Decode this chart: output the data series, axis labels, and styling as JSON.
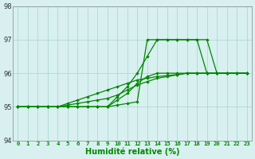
{
  "xlabel": "Humidité relative (%)",
  "background_color": "#d8f0f0",
  "grid_color": "#b0d8d8",
  "line_color": "#008800",
  "xlim": [
    -0.5,
    23.5
  ],
  "ylim": [
    94,
    98
  ],
  "yticks": [
    94,
    95,
    96,
    97,
    98
  ],
  "xticks": [
    0,
    1,
    2,
    3,
    4,
    5,
    6,
    7,
    8,
    9,
    10,
    11,
    12,
    13,
    14,
    15,
    16,
    17,
    18,
    19,
    20,
    21,
    22,
    23
  ],
  "series": [
    [
      95.0,
      95.0,
      95.0,
      95.0,
      95.0,
      95.0,
      95.0,
      95.0,
      95.0,
      95.0,
      95.05,
      95.1,
      95.15,
      97.0,
      97.0,
      97.0,
      97.0,
      97.0,
      97.0,
      97.0,
      96.0,
      96.0,
      96.0,
      96.0
    ],
    [
      95.0,
      95.0,
      95.0,
      95.0,
      95.0,
      95.0,
      95.0,
      95.0,
      95.0,
      95.0,
      95.3,
      95.6,
      96.0,
      96.5,
      97.0,
      97.0,
      97.0,
      97.0,
      97.0,
      96.0,
      96.0,
      96.0,
      96.0,
      96.0
    ],
    [
      95.0,
      95.0,
      95.0,
      95.0,
      95.0,
      95.0,
      95.0,
      95.0,
      95.0,
      95.0,
      95.2,
      95.4,
      95.7,
      95.9,
      96.0,
      96.0,
      96.0,
      96.0,
      96.0,
      96.0,
      96.0,
      96.0,
      96.0,
      96.0
    ],
    [
      95.0,
      95.0,
      95.0,
      95.0,
      95.0,
      95.05,
      95.1,
      95.15,
      95.2,
      95.25,
      95.35,
      95.5,
      95.65,
      95.75,
      95.85,
      95.9,
      95.95,
      96.0,
      96.0,
      96.0,
      96.0,
      96.0,
      96.0,
      96.0
    ],
    [
      95.0,
      95.0,
      95.0,
      95.0,
      95.0,
      95.1,
      95.2,
      95.3,
      95.4,
      95.5,
      95.6,
      95.7,
      95.8,
      95.85,
      95.9,
      95.93,
      95.96,
      96.0,
      96.0,
      96.0,
      96.0,
      96.0,
      96.0,
      96.0
    ]
  ]
}
